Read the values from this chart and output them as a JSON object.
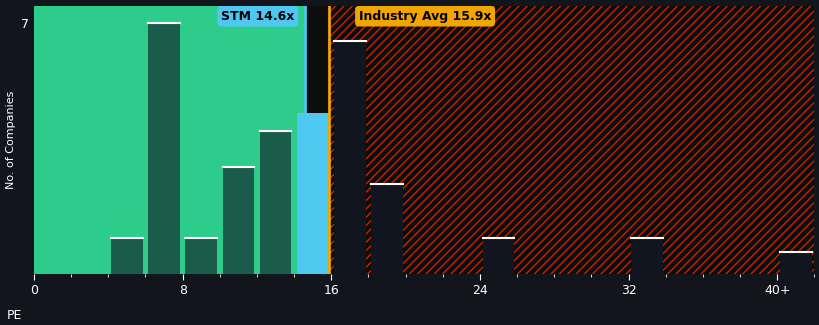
{
  "background_color": "#12161c",
  "plot_bg_color": "#12161c",
  "xlabel": "PE",
  "ylabel": "No. of Companies",
  "ylim": [
    0,
    7.5
  ],
  "xlim": [
    0,
    42
  ],
  "xticks": [
    0,
    8,
    16,
    24,
    32,
    40
  ],
  "xticklabels": [
    "0",
    "8",
    "16",
    "24",
    "32",
    "40+"
  ],
  "ytick_val": 7,
  "ytick_label": "7",
  "stm_value": 14.6,
  "industry_avg": 15.9,
  "stm_label": "STM 14.6x",
  "industry_label": "Industry Avg 15.9x",
  "stm_label_bg": "#4ec8f0",
  "industry_label_bg": "#f0a500",
  "green_fill": "#2ecc8a",
  "dark_green_bar": "#1a5c4a",
  "blue_bar": "#4ec8f0",
  "hatch_bg": "#0d0d0d",
  "hatch_color": "#cc2200",
  "bar_width": 1.7,
  "bars": [
    {
      "x": 3,
      "height": 0,
      "type": "green"
    },
    {
      "x": 5,
      "height": 1.0,
      "type": "dark_green"
    },
    {
      "x": 7,
      "height": 7.0,
      "type": "dark_green"
    },
    {
      "x": 9,
      "height": 1.0,
      "type": "dark_green"
    },
    {
      "x": 11,
      "height": 3.0,
      "type": "dark_green"
    },
    {
      "x": 13,
      "height": 4.0,
      "type": "dark_green"
    },
    {
      "x": 15,
      "height": 4.5,
      "type": "blue"
    },
    {
      "x": 17,
      "height": 6.5,
      "type": "red"
    },
    {
      "x": 19,
      "height": 2.5,
      "type": "red"
    },
    {
      "x": 25,
      "height": 1.0,
      "type": "red"
    },
    {
      "x": 33,
      "height": 1.0,
      "type": "red"
    },
    {
      "x": 41,
      "height": 0.6,
      "type": "red"
    }
  ]
}
